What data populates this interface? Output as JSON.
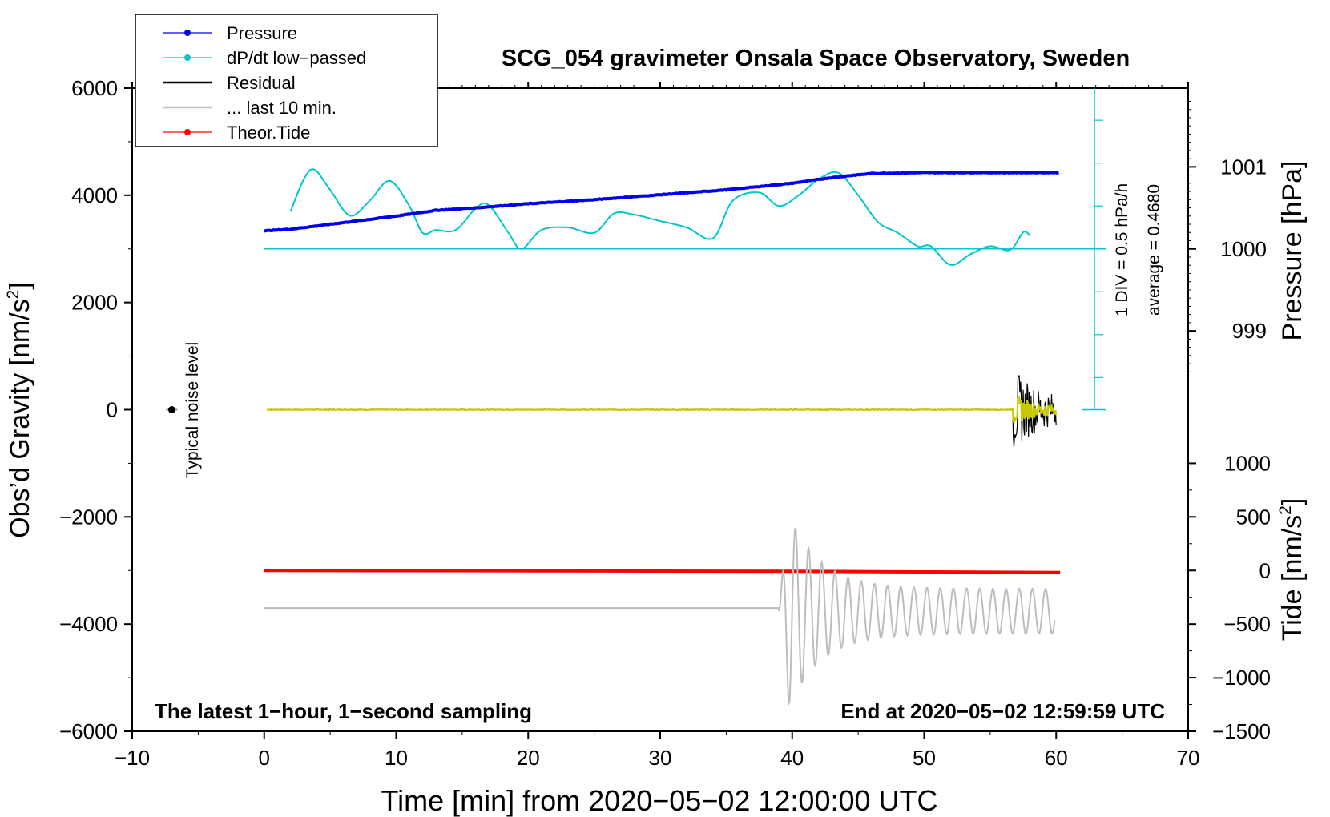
{
  "chart_data": {
    "type": "line",
    "title": "SCG_054 gravimeter Onsala Space Observatory, Sweden",
    "xlabel": "Time [min] from 2020−05−02 12:00:00 UTC",
    "ylabel_left": "Obs’d Gravity [nm/s²]",
    "ylabel_left_parts": {
      "base": "Obs’d Gravity [nm/s",
      "sup": "2",
      "end": "]"
    },
    "ylabel_pressure": "Pressure [hPa]",
    "ylabel_tide": "Tide [nm/s²]",
    "ylabel_tide_parts": {
      "base": "Tide [nm/s",
      "sup": "2",
      "end": "]"
    },
    "xlim": [
      -10,
      70
    ],
    "ylim_left": [
      -6000,
      6000
    ],
    "x_ticks": [
      -10,
      0,
      10,
      20,
      30,
      40,
      50,
      60,
      70
    ],
    "x_tick_labels": [
      "−10",
      "0",
      "10",
      "20",
      "30",
      "40",
      "50",
      "60",
      "70"
    ],
    "y_ticks_left": [
      -6000,
      -4000,
      -2000,
      0,
      2000,
      4000,
      6000
    ],
    "y_tick_labels_left": [
      "−6000",
      "−4000",
      "−2000",
      "0",
      "2000",
      "4000",
      "6000"
    ],
    "pressure_ticks": [
      999,
      1000,
      1001
    ],
    "pressure_tick_labels": [
      "999",
      "1000",
      "1001"
    ],
    "tide_ticks": [
      -1500,
      -1000,
      -500,
      0,
      500,
      1000
    ],
    "tide_tick_labels": [
      "−1500",
      "−1000",
      "−500",
      "0",
      "500",
      "1000"
    ],
    "grid": false,
    "legend": {
      "position": "top-left",
      "entries": [
        {
          "label": "Pressure",
          "color": "#0000ee",
          "marker": true
        },
        {
          "label": "dP/dt low−passed",
          "color": "#00c8c8",
          "marker": true
        },
        {
          "label": "Residual",
          "color": "#000000",
          "marker": false
        },
        {
          "label": "... last 10 min.",
          "color": "#c0c0c0",
          "marker": false
        },
        {
          "label": "Theor.Tide",
          "color": "#ff0000",
          "marker": true
        }
      ]
    },
    "annotations": {
      "bottom_left": "The latest 1−hour, 1−second sampling",
      "bottom_right": "End at 2020−05−02 12:59:59 UTC",
      "dpdt_scale": "1 DIV = 0.5 hPa/h",
      "dpdt_average": "average = 0.4680",
      "noise_label": "Typical noise level"
    },
    "noise_marker": {
      "x": -7,
      "y": 0
    },
    "series": [
      {
        "name": "Pressure",
        "color": "#0000ee",
        "units": "hPa",
        "x": [
          0,
          2,
          5,
          8,
          10,
          13,
          16,
          20,
          25,
          30,
          35,
          40,
          43,
          46,
          50,
          55,
          58,
          60.3
        ],
        "values": [
          1000.22,
          1000.24,
          1000.3,
          1000.36,
          1000.4,
          1000.47,
          1000.5,
          1000.55,
          1000.6,
          1000.66,
          1000.72,
          1000.8,
          1000.87,
          1000.92,
          1000.93,
          1000.93,
          1000.93,
          1000.93
        ]
      },
      {
        "name": "dP/dt low−passed",
        "color": "#00c8c8",
        "units": "gravity-axis equivalent (zero line at 3000, 1 DIV = 0.5 hPa/h)",
        "x": [
          2,
          3,
          3.8,
          5,
          6.5,
          8,
          9.5,
          11,
          12,
          13,
          14.5,
          16,
          17,
          18.5,
          19.5,
          21,
          23,
          25,
          26.5,
          28,
          30,
          32,
          34,
          35.5,
          37.5,
          39,
          40.5,
          42,
          43.5,
          45,
          46.5,
          48,
          49.5,
          50.5,
          52,
          53.5,
          55,
          56.5,
          57.5,
          58
        ],
        "values": [
          3700,
          4300,
          4480,
          4100,
          3620,
          3900,
          4270,
          3800,
          3300,
          3350,
          3350,
          3750,
          3820,
          3300,
          3000,
          3350,
          3400,
          3300,
          3660,
          3640,
          3520,
          3400,
          3200,
          3900,
          4050,
          3800,
          4000,
          4300,
          4420,
          4000,
          3500,
          3300,
          3050,
          3050,
          2700,
          2900,
          3050,
          2980,
          3310,
          3250
        ]
      },
      {
        "name": "Theor.Tide",
        "color": "#ff0000",
        "units": "nm/s²",
        "x": [
          0,
          20,
          40,
          50,
          60.3
        ],
        "values": [
          0,
          -3,
          -8,
          -13,
          -18
        ]
      }
    ]
  }
}
